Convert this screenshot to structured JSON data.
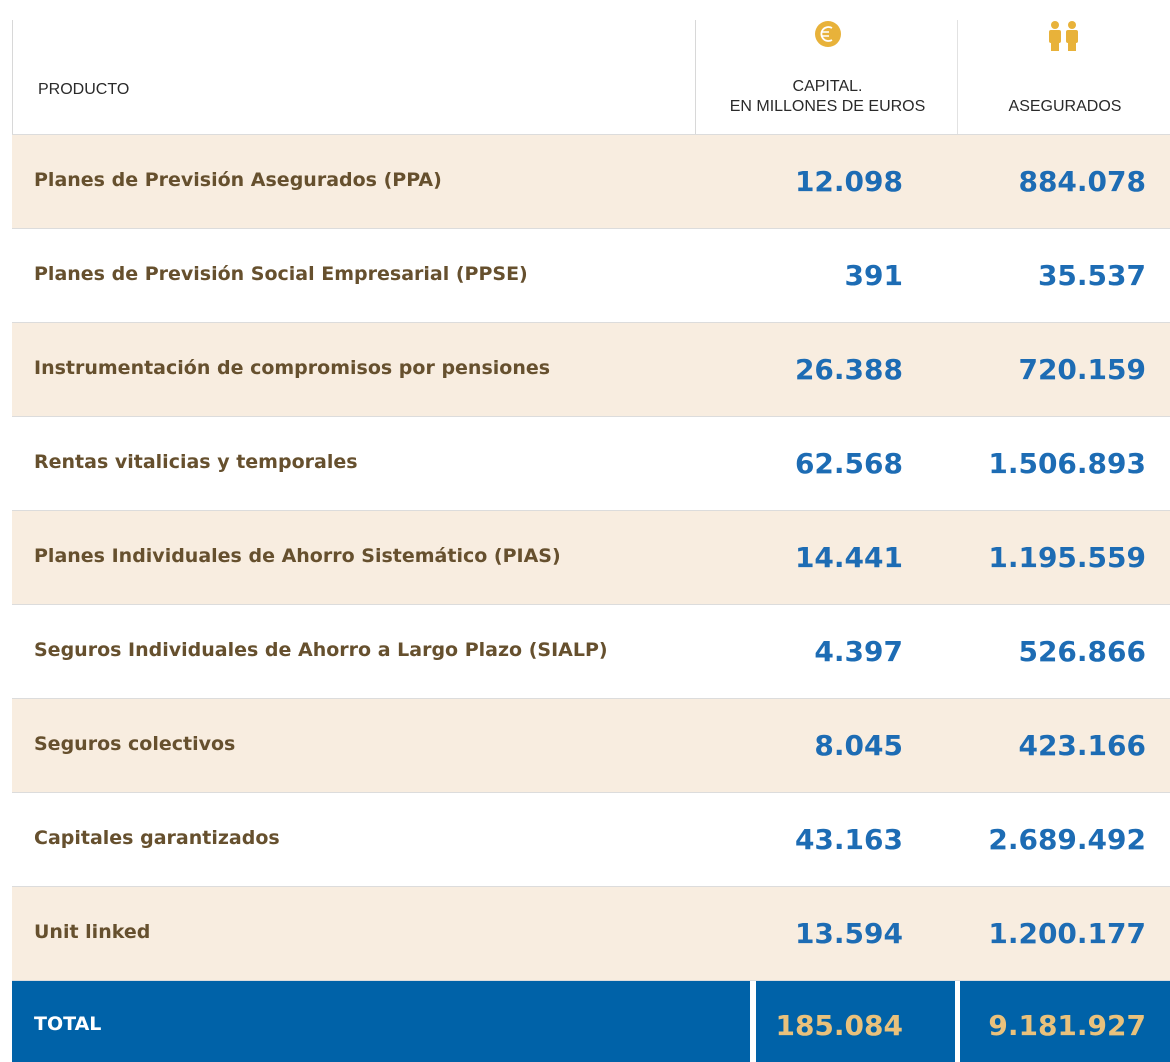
{
  "table": {
    "header": [
      "PRODUCTO",
      "CAPITAL.",
      "EN MILLONES DE EUROS",
      "ASEGURADOS"
    ],
    "rows": [
      [
        "Planes de Previsión Asegurados (PPA)",
        "12.098",
        "884.078"
      ],
      [
        "Planes de Previsión Social Empresarial (PPSE)",
        "391",
        "35.537"
      ],
      [
        "Instrumentación de compromisos por pensiones",
        "26.388",
        "720.159"
      ],
      [
        "Rentas vitalicias y temporales",
        "62.568",
        "1.506.893"
      ],
      [
        "Planes Individuales de Ahorro Sistemático (PIAS)",
        "14.441",
        "1.195.559"
      ],
      [
        "Seguros Individuales de Ahorro a Largo Plazo (SIALP)",
        "4.397",
        "526.866"
      ],
      [
        "Seguros colectivos",
        "8.045",
        "423.166"
      ],
      [
        "Capitales garantizados",
        "43.163",
        "2.689.492"
      ],
      [
        "Unit linked",
        "13.594",
        "1.200.177"
      ]
    ],
    "total": [
      "TOTAL",
      "185.084",
      "9.181.927"
    ]
  }
}
